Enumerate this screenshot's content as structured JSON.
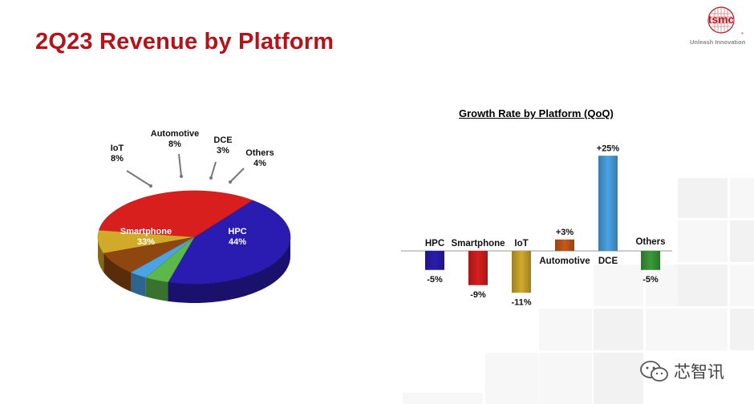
{
  "page": {
    "title": "2Q23 Revenue by Platform",
    "logo_text": "tsmc",
    "tagline": "Unleash Innovation",
    "watermark": "芯智讯"
  },
  "chart_data": [
    {
      "type": "pie",
      "title": "",
      "slices": [
        {
          "label": "HPC",
          "value": 44,
          "display": "44%",
          "color": "#2a1cb0"
        },
        {
          "label": "Smartphone",
          "value": 33,
          "display": "33%",
          "color": "#d91e1e"
        },
        {
          "label": "IoT",
          "value": 8,
          "display": "8%",
          "color": "#d2aa2a"
        },
        {
          "label": "Automotive",
          "value": 8,
          "display": "8%",
          "color": "#8f4710"
        },
        {
          "label": "DCE",
          "value": 3,
          "display": "3%",
          "color": "#4aa3e6"
        },
        {
          "label": "Others",
          "value": 4,
          "display": "4%",
          "color": "#5cb84a"
        }
      ]
    },
    {
      "type": "bar",
      "title": "Growth Rate by Platform (QoQ)",
      "categories": [
        "HPC",
        "Smartphone",
        "IoT",
        "Automotive",
        "DCE",
        "Others"
      ],
      "values": [
        -5,
        -9,
        -11,
        3,
        25,
        -5
      ],
      "value_labels": [
        "-5%",
        "-9%",
        "-11%",
        "+3%",
        "+25%",
        "-5%"
      ],
      "colors": [
        "#2a1cb0",
        "#d91e1e",
        "#d2aa2a",
        "#c8581b",
        "#4aa3e6",
        "#3a9a3a"
      ],
      "ylim": [
        -11,
        25
      ],
      "grid": false,
      "legend": "none"
    }
  ]
}
